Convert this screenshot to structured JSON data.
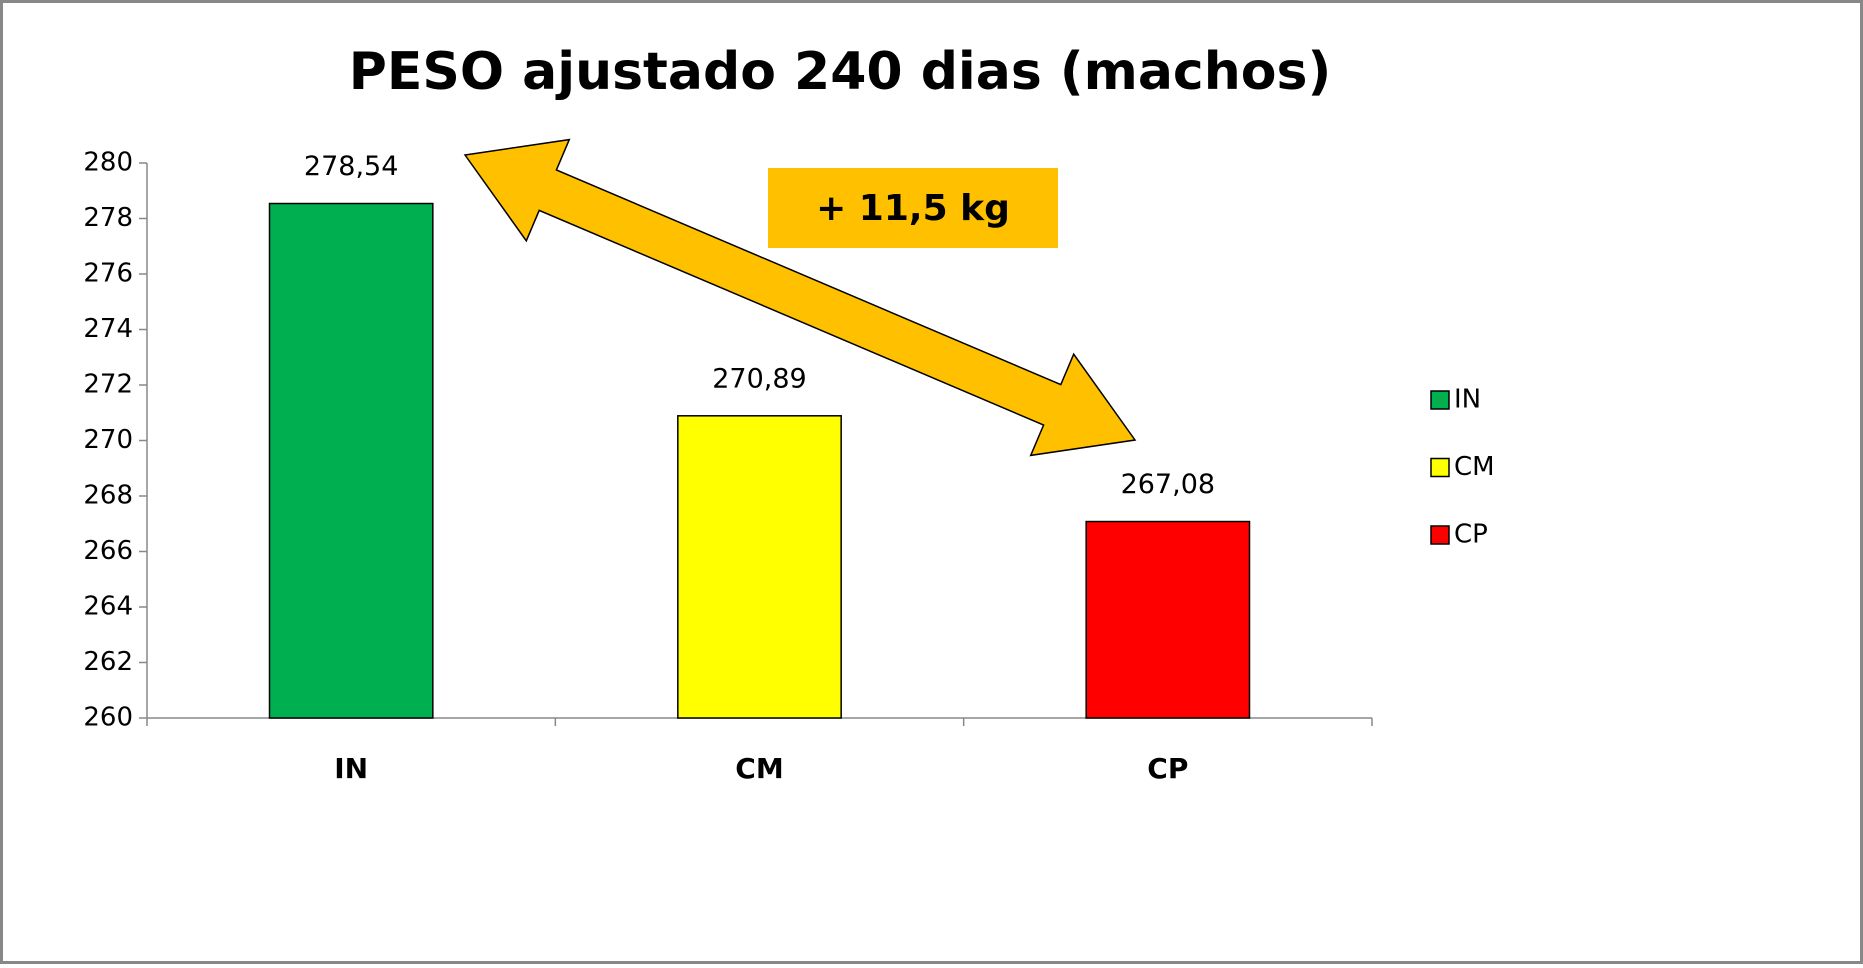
{
  "chart_data": {
    "type": "bar",
    "title": "PESO ajustado 240 dias (machos)",
    "categories": [
      "IN",
      "CM",
      "CP"
    ],
    "values": [
      278.54,
      270.89,
      267.08
    ],
    "value_labels": [
      "278,54",
      "270,89",
      "267,08"
    ],
    "colors": [
      "#00b050",
      "#ffff00",
      "#ff0000"
    ],
    "ylim": [
      260,
      280
    ],
    "yticks": [
      260,
      262,
      264,
      266,
      268,
      270,
      272,
      274,
      276,
      278,
      280
    ],
    "legend": "right",
    "annotation": "+ 11,5 kg"
  }
}
